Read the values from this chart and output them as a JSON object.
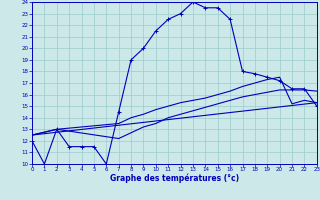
{
  "xlabel": "Graphe des températures (°c)",
  "bg_color": "#cce8e8",
  "grid_color": "#99cccc",
  "line_color": "#0000bb",
  "xlim": [
    0,
    23
  ],
  "ylim": [
    10,
    24
  ],
  "xticks": [
    0,
    1,
    2,
    3,
    4,
    5,
    6,
    7,
    8,
    9,
    10,
    11,
    12,
    13,
    14,
    15,
    16,
    17,
    18,
    19,
    20,
    21,
    22,
    23
  ],
  "yticks": [
    10,
    11,
    12,
    13,
    14,
    15,
    16,
    17,
    18,
    19,
    20,
    21,
    22,
    23,
    24
  ],
  "main_x": [
    0,
    1,
    2,
    3,
    4,
    5,
    6,
    7,
    8,
    9,
    10,
    11,
    12,
    13,
    14,
    15,
    16,
    17,
    18,
    19,
    20,
    21,
    22,
    23
  ],
  "main_y": [
    12.0,
    10.0,
    13.0,
    11.5,
    11.5,
    11.5,
    10.0,
    14.5,
    19.0,
    20.0,
    21.5,
    22.5,
    23.0,
    24.0,
    23.5,
    23.5,
    22.5,
    18.0,
    17.8,
    17.5,
    17.2,
    16.5,
    16.5,
    15.0
  ],
  "avg_upper_x": [
    0,
    2,
    7,
    8,
    9,
    10,
    11,
    12,
    13,
    14,
    15,
    16,
    17,
    18,
    19,
    20,
    21,
    22,
    23
  ],
  "avg_upper_y": [
    12.5,
    13.0,
    13.5,
    14.0,
    14.3,
    14.7,
    15.0,
    15.3,
    15.5,
    15.7,
    16.0,
    16.3,
    16.7,
    17.0,
    17.3,
    17.5,
    15.2,
    15.5,
    15.3
  ],
  "avg_lower_x": [
    0,
    2,
    7,
    8,
    9,
    10,
    11,
    12,
    13,
    14,
    15,
    16,
    17,
    18,
    19,
    20,
    21,
    22,
    23
  ],
  "avg_lower_y": [
    12.5,
    13.0,
    12.2,
    12.7,
    13.2,
    13.5,
    14.0,
    14.3,
    14.6,
    14.9,
    15.2,
    15.5,
    15.8,
    16.0,
    16.2,
    16.4,
    16.4,
    16.4,
    16.3
  ],
  "trend_x": [
    0,
    23
  ],
  "trend_y": [
    12.5,
    15.3
  ]
}
